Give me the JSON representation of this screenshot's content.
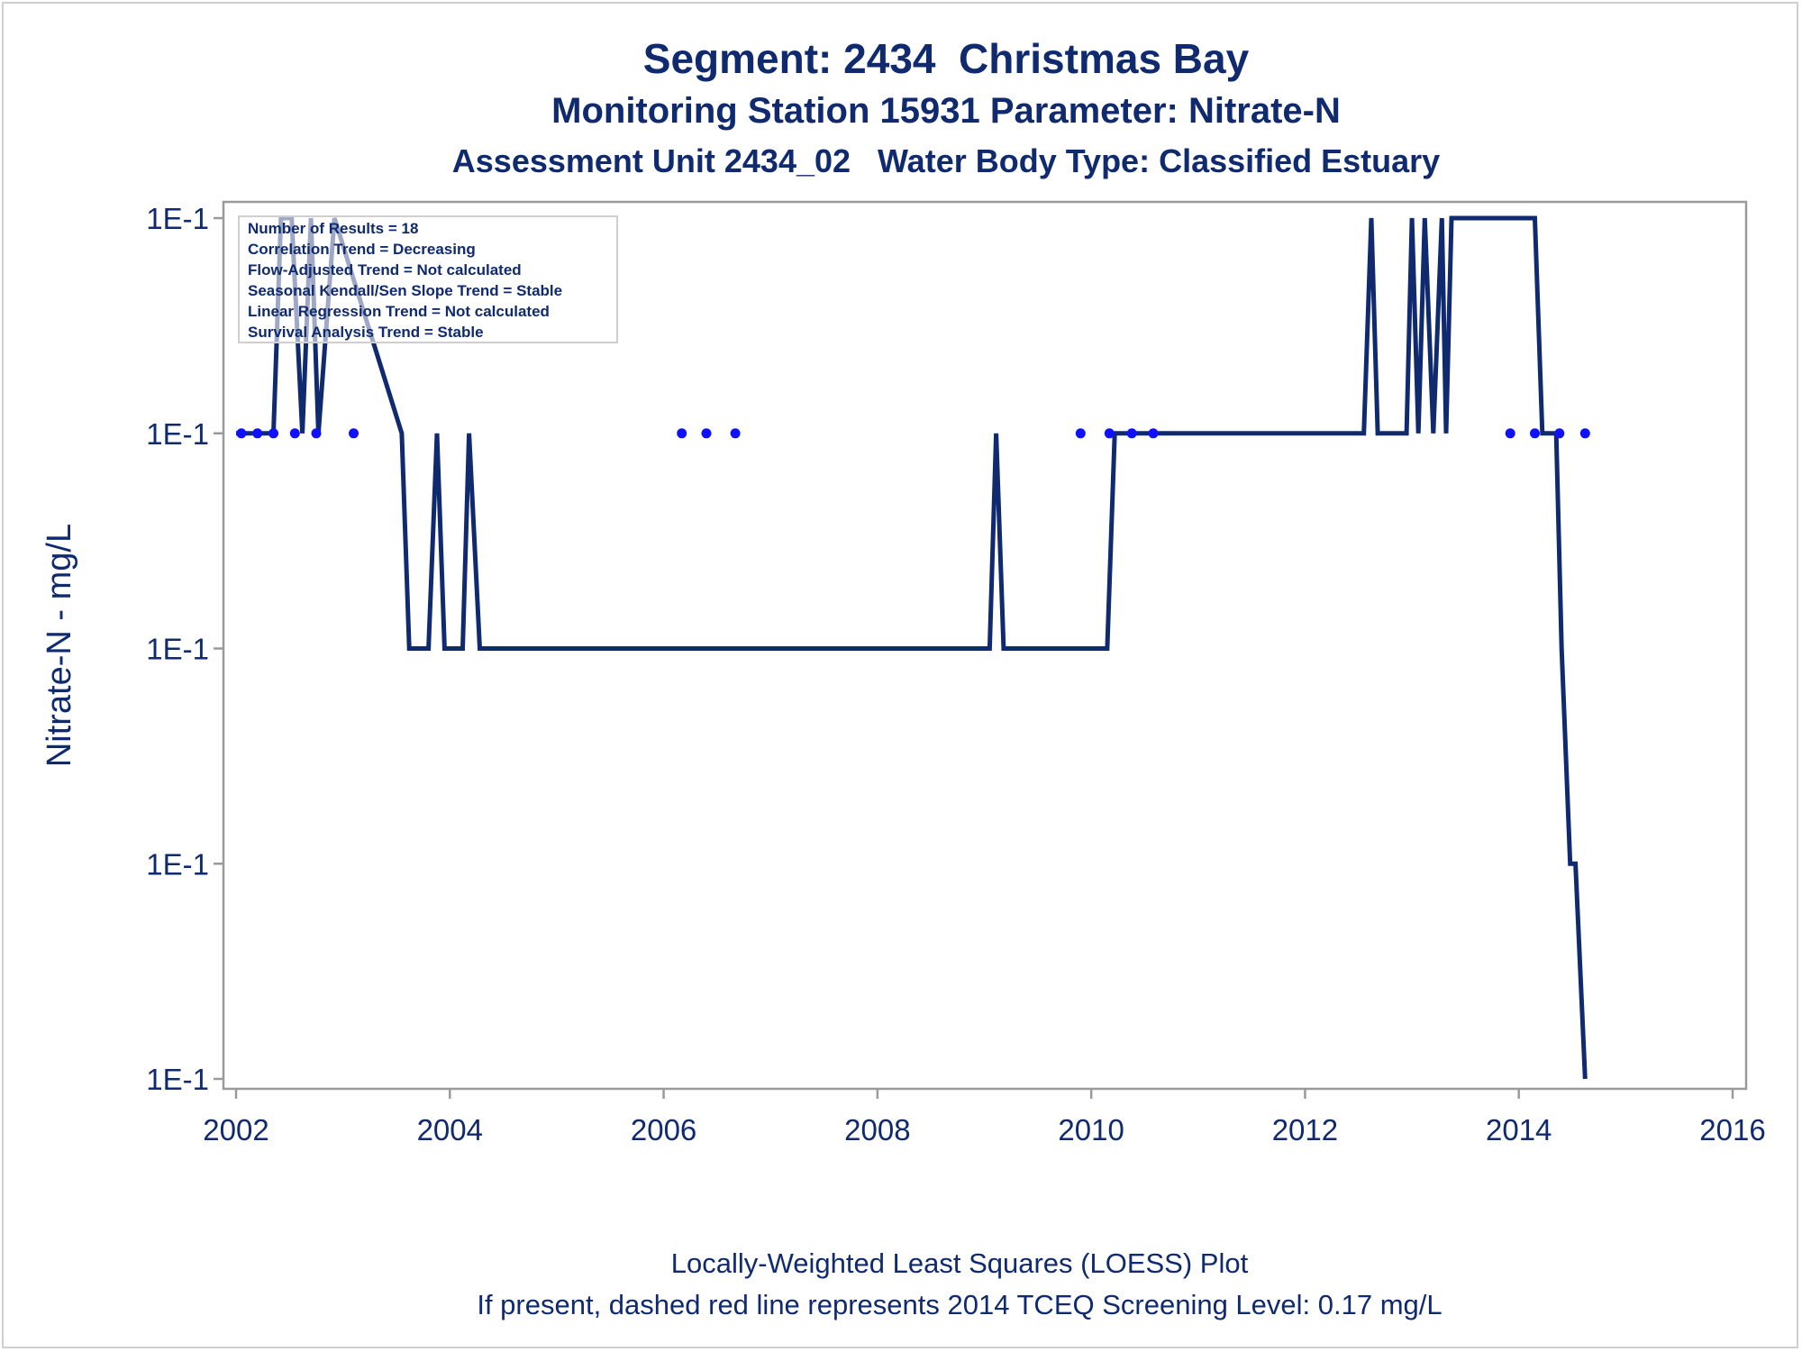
{
  "titles": {
    "line1": "Segment: 2434  Christmas Bay",
    "line2": "Monitoring Station 15931 Parameter: Nitrate-N",
    "line3": "Assessment Unit 2434_02   Water Body Type: Classified Estuary"
  },
  "footnotes": {
    "line1": "Locally-Weighted Least Squares (LOESS) Plot",
    "line2": "If present, dashed red line represents 2014 TCEQ Screening Level: 0.17 mg/L"
  },
  "stats_box": [
    "Number of Results = 18",
    "Correlation Trend = Decreasing",
    "Flow-Adjusted Trend = Not calculated",
    "Seasonal Kendall/Sen Slope Trend = Stable",
    "Linear Regression Trend = Not calculated",
    "Survival Analysis Trend = Stable"
  ],
  "colors": {
    "text": "#0f2a6e",
    "line": "#0f2a6e",
    "points": "#1010ff",
    "axis": "#9a9a9a"
  },
  "chart_data": {
    "type": "line",
    "ylabel": "Nitrate-N - mg/L",
    "xlabel": "",
    "xlim": [
      2002,
      2016
    ],
    "x_ticks": [
      "2002",
      "2004",
      "2006",
      "2008",
      "2010",
      "2012",
      "2014",
      "2016"
    ],
    "y_ticks": [
      "1E-1",
      "1E-1",
      "1E-1",
      "1E-1",
      "1E-1"
    ],
    "y_scale": "log",
    "y_note": "all y tick labels print 1E-1; values below are read in tick-position units (tick 1 = bottom, tick 5 = top)",
    "ylim": [
      1,
      5
    ],
    "series": [
      {
        "kind": "line",
        "x": [
          2002.0,
          2002.35,
          2002.42,
          2002.52,
          2002.62,
          2002.7,
          2002.77,
          2002.92,
          2003.55,
          2003.62,
          2003.8,
          2003.88,
          2003.95,
          2004.12,
          2004.18,
          2004.28,
          2009.05,
          2009.11,
          2009.18,
          2010.15,
          2010.22,
          2012.55,
          2012.62,
          2012.68,
          2012.95,
          2013.0,
          2013.06,
          2013.12,
          2013.2,
          2013.28,
          2013.32,
          2013.37,
          2013.45,
          2014.15,
          2014.22,
          2014.35,
          2014.4,
          2014.48,
          2014.53,
          2014.62
        ],
        "values": [
          4.0,
          4.0,
          5.0,
          5.0,
          4.0,
          5.0,
          4.0,
          5.0,
          4.0,
          3.0,
          3.0,
          4.0,
          3.0,
          3.0,
          4.0,
          3.0,
          3.0,
          4.0,
          3.0,
          3.0,
          4.0,
          4.0,
          5.0,
          4.0,
          4.0,
          5.0,
          4.0,
          5.0,
          4.0,
          5.0,
          4.0,
          5.0,
          5.0,
          5.0,
          4.0,
          4.0,
          3.0,
          2.0,
          2.0,
          1.0
        ]
      },
      {
        "kind": "points",
        "x": [
          2002.05,
          2002.2,
          2002.35,
          2002.55,
          2002.75,
          2003.1,
          2006.17,
          2006.4,
          2006.67,
          2009.9,
          2010.17,
          2010.38,
          2010.58,
          2013.92,
          2014.15,
          2014.38,
          2014.62
        ],
        "values": [
          4.0,
          4.0,
          4.0,
          4.0,
          4.0,
          4.0,
          4.0,
          4.0,
          4.0,
          4.0,
          4.0,
          4.0,
          4.0,
          4.0,
          4.0,
          4.0,
          4.0
        ]
      }
    ]
  }
}
